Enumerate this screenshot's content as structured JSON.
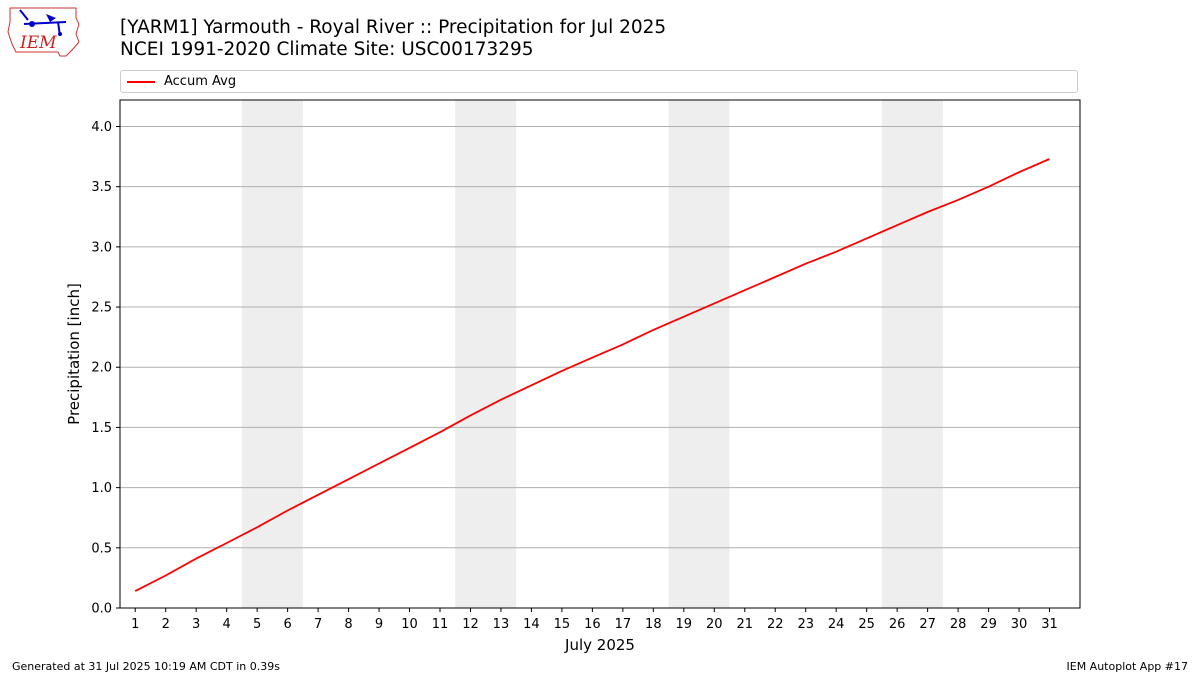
{
  "header": {
    "title_line1": "[YARM1] Yarmouth - Royal River :: Precipitation for Jul 2025",
    "title_line2": "NCEI 1991-2020 Climate Site: USC00173295",
    "logo_text": "IEM"
  },
  "legend": {
    "items": [
      {
        "label": "Accum Avg",
        "color": "#ff0000"
      }
    ]
  },
  "footer": {
    "left": "Generated at 31 Jul 2025 10:19 AM CDT in 0.39s",
    "right": "IEM Autoplot App #17"
  },
  "chart_data": {
    "type": "line",
    "xlabel": "July 2025",
    "ylabel": "Precipitation [inch]",
    "xlim": [
      0.5,
      32
    ],
    "ylim": [
      0,
      4.22
    ],
    "yticks": [
      0.0,
      0.5,
      1.0,
      1.5,
      2.0,
      2.5,
      3.0,
      3.5,
      4.0
    ],
    "ytick_labels": [
      "0.0",
      "0.5",
      "1.0",
      "1.5",
      "2.0",
      "2.5",
      "3.0",
      "3.5",
      "4.0"
    ],
    "xticks": [
      1,
      2,
      3,
      4,
      5,
      6,
      7,
      8,
      9,
      10,
      11,
      12,
      13,
      14,
      15,
      16,
      17,
      18,
      19,
      20,
      21,
      22,
      23,
      24,
      25,
      26,
      27,
      28,
      29,
      30,
      31
    ],
    "xtick_labels": [
      "1",
      "2",
      "3",
      "4",
      "5",
      "6",
      "7",
      "8",
      "9",
      "10",
      "11",
      "12",
      "13",
      "14",
      "15",
      "16",
      "17",
      "18",
      "19",
      "20",
      "21",
      "22",
      "23",
      "24",
      "25",
      "26",
      "27",
      "28",
      "29",
      "30",
      "31"
    ],
    "grid": "horizontal",
    "legend_position": "top",
    "weekend_bands": [
      [
        4.5,
        6.5
      ],
      [
        11.5,
        13.5
      ],
      [
        18.5,
        20.5
      ],
      [
        25.5,
        27.5
      ]
    ],
    "weekend_color": "#eeeeee",
    "series": [
      {
        "name": "Accum Avg",
        "color": "#ff0000",
        "x": [
          1,
          2,
          3,
          4,
          5,
          6,
          7,
          8,
          9,
          10,
          11,
          12,
          13,
          14,
          15,
          16,
          17,
          18,
          19,
          20,
          21,
          22,
          23,
          24,
          25,
          26,
          27,
          28,
          29,
          30,
          31
        ],
        "values": [
          0.14,
          0.27,
          0.41,
          0.54,
          0.67,
          0.81,
          0.94,
          1.07,
          1.2,
          1.33,
          1.46,
          1.6,
          1.73,
          1.85,
          1.97,
          2.08,
          2.19,
          2.31,
          2.42,
          2.53,
          2.64,
          2.75,
          2.86,
          2.96,
          3.07,
          3.18,
          3.29,
          3.39,
          3.5,
          3.62,
          3.73
        ]
      }
    ]
  }
}
